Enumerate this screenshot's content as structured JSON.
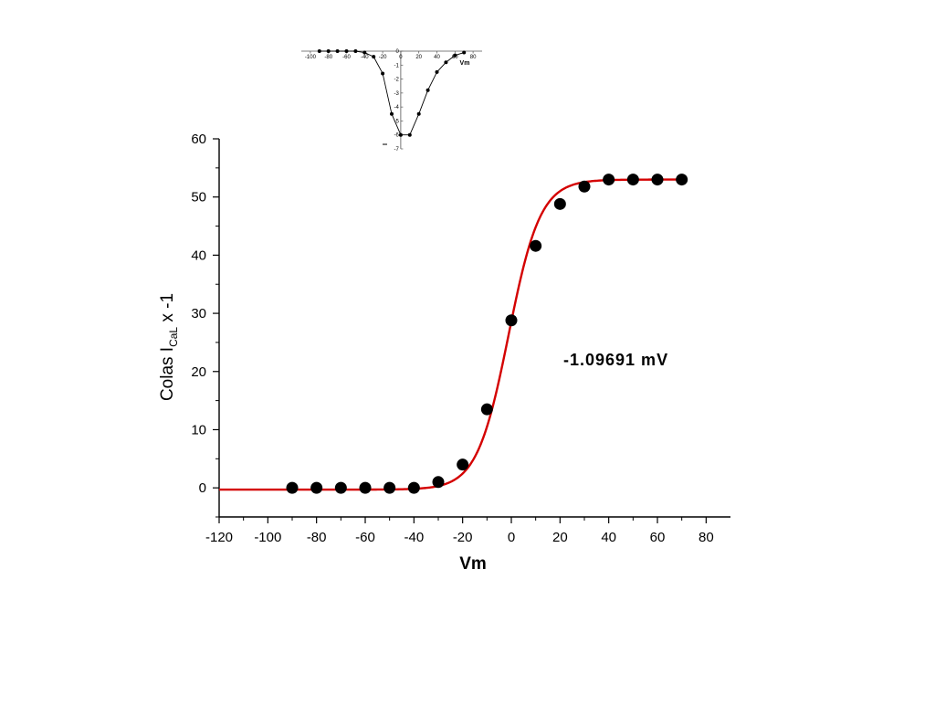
{
  "chart_data": [
    {
      "type": "scatter",
      "role": "main",
      "xlabel": "Vm",
      "ylabel_prefix": "Colas I",
      "ylabel_subscript": "CaL",
      "ylabel_suffix": " x -1",
      "xlim": [
        -120,
        90
      ],
      "ylim": [
        -5,
        60
      ],
      "x_ticks": [
        -120,
        -100,
        -80,
        -60,
        -40,
        -20,
        0,
        20,
        40,
        60,
        80
      ],
      "y_ticks": [
        0,
        10,
        20,
        30,
        40,
        50,
        60
      ],
      "annotation": "-1.09691 mV",
      "colors": {
        "points": "#000000",
        "fit": "#d40000",
        "axis": "#000000"
      },
      "series": [
        {
          "kind": "points",
          "x": [
            -90,
            -80,
            -70,
            -60,
            -50,
            -40,
            -30,
            -20,
            -10,
            0,
            10,
            20,
            30,
            40,
            50,
            60,
            70
          ],
          "y": [
            0,
            0,
            0,
            0,
            0,
            0,
            1,
            4,
            13.5,
            28.8,
            41.6,
            48.8,
            51.8,
            53.0,
            53.0,
            53.0,
            53.0
          ]
        },
        {
          "kind": "fit",
          "model": "boltzmann",
          "bottom": -0.3,
          "top": 53.0,
          "v_half": -1.09691,
          "slope": 6.5,
          "x_range": [
            -120,
            70
          ]
        }
      ]
    },
    {
      "type": "line",
      "role": "inset",
      "xlabel": "Vm",
      "ylabel": "I",
      "xlim": [
        -110,
        90
      ],
      "ylim": [
        -7,
        0
      ],
      "x_ticks": [
        -100,
        -80,
        -60,
        -40,
        -20,
        0,
        20,
        40,
        60,
        80
      ],
      "y_ticks": [
        0,
        -1,
        -2,
        -3,
        -4,
        -5,
        -6,
        -7
      ],
      "series": [
        {
          "x": [
            -90,
            -80,
            -70,
            -60,
            -50,
            -40,
            -30,
            -20,
            -10,
            0,
            10,
            20,
            30,
            40,
            50,
            60,
            70
          ],
          "y": [
            0,
            0,
            0,
            0,
            0,
            -0.1,
            -0.4,
            -1.6,
            -4.5,
            -6.0,
            -6.0,
            -4.5,
            -2.8,
            -1.5,
            -0.8,
            -0.3,
            -0.1
          ]
        }
      ]
    }
  ]
}
